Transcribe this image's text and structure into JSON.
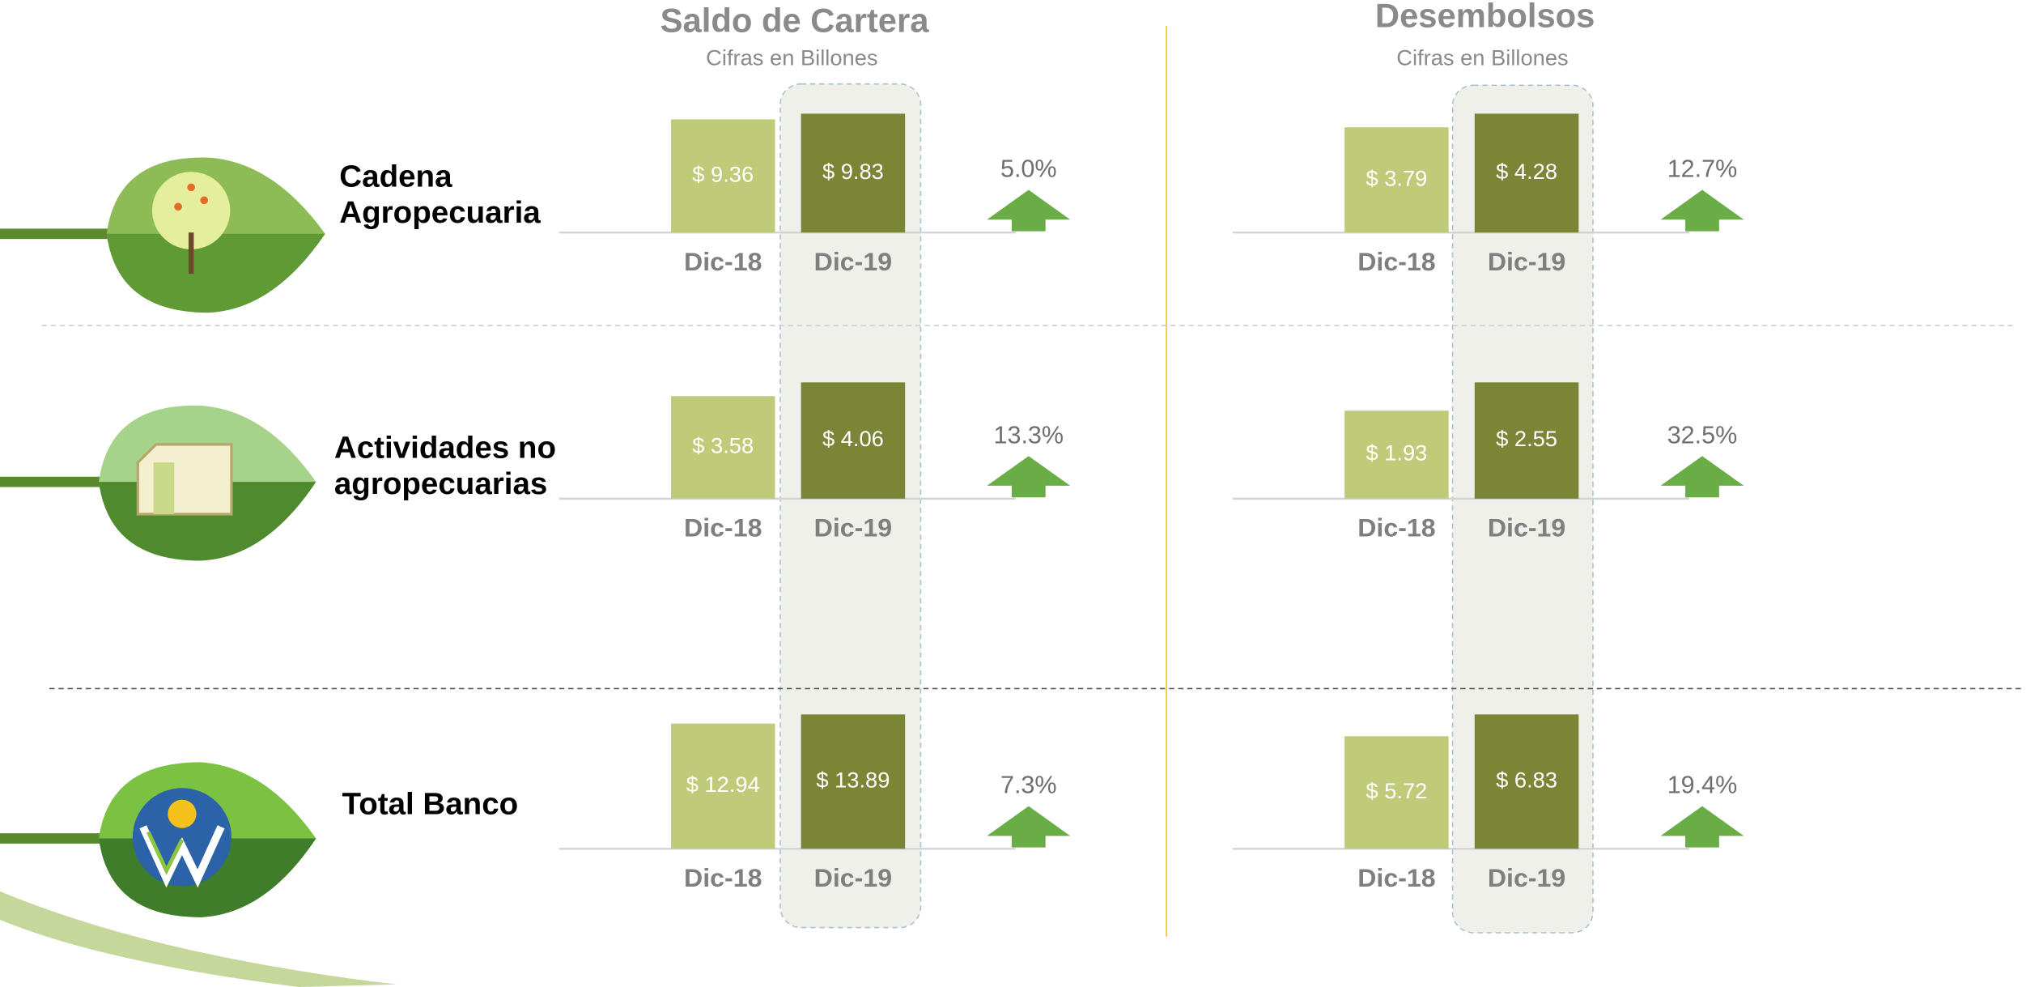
{
  "sections": [
    {
      "title": "Saldo de Cartera",
      "subtitle": "Cifras en Billones"
    },
    {
      "title": "Desembolsos",
      "subtitle": "Cifras en Billones"
    }
  ],
  "rows": [
    {
      "label": [
        "Cadena",
        "Agropecuaria"
      ]
    },
    {
      "label": [
        "Actividades no",
        "agropecuarias"
      ]
    },
    {
      "label": [
        "Total Banco"
      ]
    }
  ],
  "chart_data": [
    {
      "type": "bar",
      "categories": [
        "Dic-18",
        "Dic-19"
      ],
      "values": [
        9.36,
        9.83
      ],
      "value_labels": [
        "$ 9.36",
        "$ 9.83"
      ],
      "colors": [
        "#c0cb7a",
        "#7a8536"
      ],
      "annotation": "5.0%"
    },
    {
      "type": "bar",
      "categories": [
        "Dic-18",
        "Dic-19"
      ],
      "values": [
        3.79,
        4.28
      ],
      "value_labels": [
        "$ 3.79",
        "$ 4.28"
      ],
      "colors": [
        "#c0cb7a",
        "#7a8536"
      ],
      "annotation": "12.7%"
    },
    {
      "type": "bar",
      "categories": [
        "Dic-18",
        "Dic-19"
      ],
      "values": [
        3.58,
        4.06
      ],
      "value_labels": [
        "$ 3.58",
        "$ 4.06"
      ],
      "colors": [
        "#c0cb7a",
        "#7a8536"
      ],
      "annotation": "13.3%"
    },
    {
      "type": "bar",
      "categories": [
        "Dic-18",
        "Dic-19"
      ],
      "values": [
        1.93,
        2.55
      ],
      "value_labels": [
        "$ 1.93",
        "$ 2.55"
      ],
      "colors": [
        "#c0cb7a",
        "#7a8536"
      ],
      "annotation": "32.5%"
    },
    {
      "type": "bar",
      "categories": [
        "Dic-18",
        "Dic-19"
      ],
      "values": [
        12.94,
        13.89
      ],
      "value_labels": [
        "$ 12.94",
        "$ 13.89"
      ],
      "colors": [
        "#c0cb7a",
        "#7a8536"
      ],
      "annotation": "7.3%"
    },
    {
      "type": "bar",
      "categories": [
        "Dic-18",
        "Dic-19"
      ],
      "values": [
        5.72,
        6.83
      ],
      "value_labels": [
        "$ 5.72",
        "$ 6.83"
      ],
      "colors": [
        "#c0cb7a",
        "#7a8536"
      ],
      "annotation": "19.4%"
    }
  ]
}
